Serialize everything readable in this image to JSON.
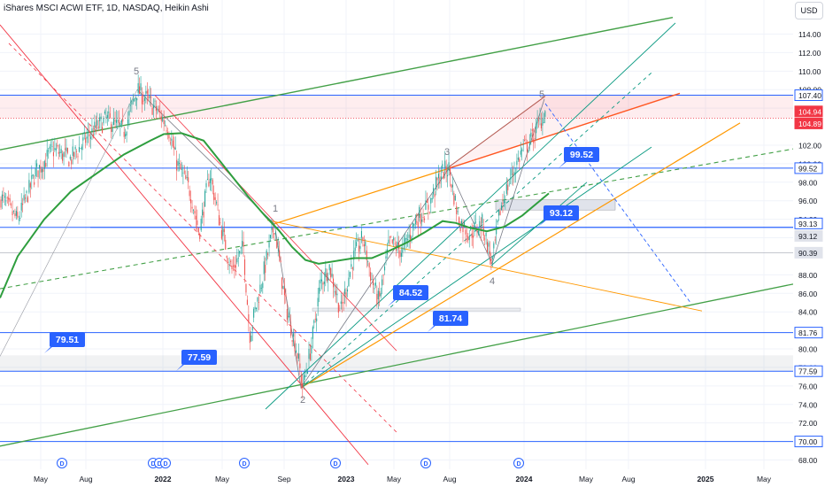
{
  "header": {
    "title": "iShares MSCI ACWI ETF, 1D, NASDAQ, Heikin Ashi",
    "currency": "USD"
  },
  "colors": {
    "up": "#26a69a",
    "down": "#ef5350",
    "ma": "#2e9e3e",
    "blue_line": "#2962ff",
    "orange": "#ff9800",
    "green": "#43a047",
    "red": "#f23645",
    "teal": "#089981",
    "label_bg": "#2962ff"
  },
  "chart_data": {
    "type": "candlestick",
    "price_scale": {
      "min": 68,
      "max": 116,
      "ticks": [
        "114.00",
        "112.00",
        "110.00",
        "108.00",
        "106.00",
        "102.00",
        "100.00",
        "98.00",
        "96.00",
        "94.00",
        "92.00",
        "88.00",
        "86.00",
        "84.00",
        "80.00",
        "78.00",
        "76.00",
        "74.00",
        "72.00",
        "68.00"
      ]
    },
    "time_axis": [
      "May",
      "Aug",
      "2022",
      "May",
      "Sep",
      "2023",
      "May",
      "Aug",
      "2024",
      "May",
      "Aug",
      "2025",
      "May"
    ],
    "time_axis_values": [
      "2021-05",
      "2021-08",
      "2022-01",
      "2022-05",
      "2022-09",
      "2023-01",
      "2023-05",
      "2023-08",
      "2024-01",
      "2024-05",
      "2024-08",
      "2025-01",
      "2025-05"
    ],
    "axis_price_labels": [
      {
        "value": 107.4,
        "text": "107.40",
        "style": "outline-blue"
      },
      {
        "value": 104.94,
        "text": "104.94",
        "style": "red"
      },
      {
        "value": 104.89,
        "text": "104.89",
        "style": "red"
      },
      {
        "value": 99.52,
        "text": "99.52",
        "style": "outline-blue"
      },
      {
        "value": 93.13,
        "text": "93.13",
        "style": "outline-blue"
      },
      {
        "value": 93.12,
        "text": "93.12",
        "style": "grey"
      },
      {
        "value": 90.39,
        "text": "90.39",
        "style": "grey"
      },
      {
        "value": 81.76,
        "text": "81.76",
        "style": "outline-blue"
      },
      {
        "value": 77.59,
        "text": "77.59",
        "style": "outline-blue"
      },
      {
        "value": 70.0,
        "text": "70.00",
        "style": "outline-blue"
      }
    ],
    "horizontal_levels": [
      107.4,
      99.52,
      93.13,
      81.76,
      77.59,
      70.0
    ],
    "callouts": [
      {
        "text": "99.52",
        "value": 99.52
      },
      {
        "text": "93.12",
        "value": 93.12
      },
      {
        "text": "84.52",
        "value": 84.52
      },
      {
        "text": "81.74",
        "value": 81.74
      },
      {
        "text": "79.51",
        "value": 79.51
      },
      {
        "text": "77.59",
        "value": 77.59
      }
    ],
    "wave_labels": [
      "5",
      "1",
      "2",
      "3",
      "4",
      "5"
    ],
    "event_markers": [
      "D",
      "D",
      "D",
      "D",
      "D",
      "D",
      "D",
      "D"
    ]
  }
}
